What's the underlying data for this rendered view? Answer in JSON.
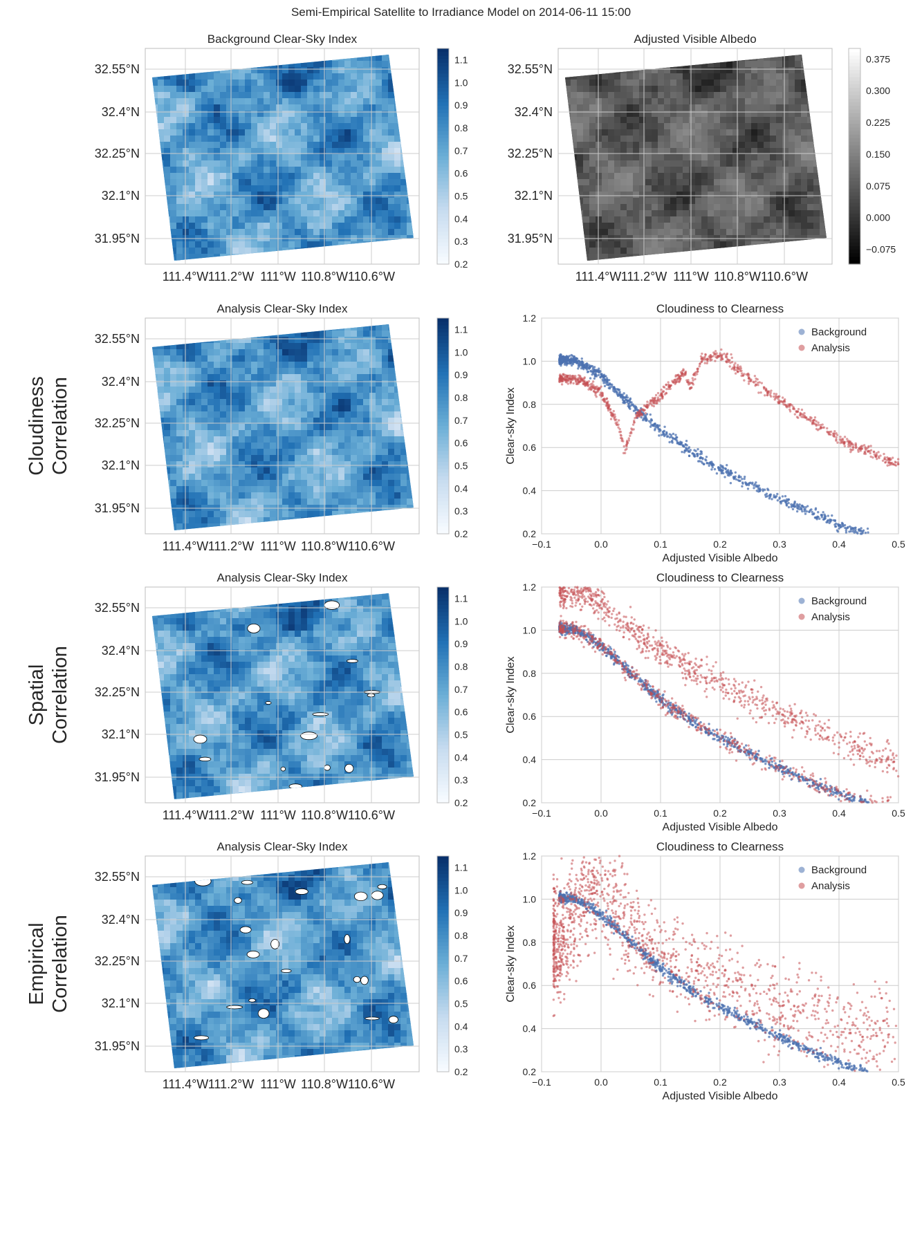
{
  "figure": {
    "suptitle": "Semi-Empirical Satellite to Irradiance Model on 2014-06-11 15:00",
    "row_labels": [
      {
        "line1": "",
        "line2": ""
      },
      {
        "line1": "Cloudiness",
        "line2": "Correlation"
      },
      {
        "line1": "Spatial",
        "line2": "Correlation"
      },
      {
        "line1": "Empirical",
        "line2": "Correlation"
      }
    ]
  },
  "colors": {
    "background_series": "#4c72b0",
    "analysis_series": "#c44e52",
    "grid": "#cccccc",
    "frame": "#bcbcbc"
  },
  "map_axes": {
    "xticks": [
      "111.4°W",
      "111.2°W",
      "111°W",
      "110.8°W",
      "110.6°W"
    ],
    "yticks": [
      "32.55°N",
      "32.4°N",
      "32.25°N",
      "32.1°N",
      "31.95°N"
    ]
  },
  "chart_data": [
    {
      "type": "heatmap",
      "title": "Background Clear-Sky Index",
      "colormap": "Blues",
      "colorbar_range": [
        0.2,
        1.15
      ],
      "colorbar_ticks": [
        "1.1",
        "1.0",
        "0.9",
        "0.8",
        "0.7",
        "0.6",
        "0.5",
        "0.4",
        "0.3",
        "0.2"
      ]
    },
    {
      "type": "heatmap",
      "title": "Adjusted Visible Albedo",
      "colormap": "Greys_r",
      "colorbar_range": [
        -0.11,
        0.4
      ],
      "colorbar_ticks": [
        "0.375",
        "0.300",
        "0.225",
        "0.150",
        "0.075",
        "0.000",
        "−0.075"
      ]
    },
    {
      "type": "heatmap",
      "title": "Analysis Clear-Sky Index",
      "colormap": "Blues",
      "colorbar_range": [
        0.2,
        1.15
      ],
      "colorbar_ticks": [
        "1.1",
        "1.0",
        "0.9",
        "0.8",
        "0.7",
        "0.6",
        "0.5",
        "0.4",
        "0.3",
        "0.2"
      ]
    },
    {
      "type": "scatter",
      "title": "Cloudiness to Clearness",
      "xlabel": "Adjusted Visible Albedo",
      "ylabel": "Clear-sky Index",
      "xlim": [
        -0.1,
        0.5
      ],
      "ylim": [
        0.2,
        1.2
      ],
      "xticks": [
        "−0.1",
        "0.0",
        "0.1",
        "0.2",
        "0.3",
        "0.4",
        "0.5"
      ],
      "yticks": [
        "1.2",
        "1.0",
        "0.8",
        "0.6",
        "0.4",
        "0.2"
      ],
      "legend": [
        "Background",
        "Analysis"
      ],
      "legend_position": "top-right",
      "series": [
        {
          "name": "Background",
          "x": [
            -0.07,
            -0.04,
            0.0,
            0.05,
            0.1,
            0.15,
            0.2,
            0.25,
            0.3,
            0.35,
            0.4,
            0.44
          ],
          "y": [
            1.01,
            1.0,
            0.93,
            0.8,
            0.68,
            0.58,
            0.5,
            0.43,
            0.36,
            0.3,
            0.24,
            0.2
          ]
        },
        {
          "name": "Analysis",
          "x": [
            -0.07,
            -0.03,
            0.0,
            0.03,
            0.04,
            0.06,
            0.1,
            0.14,
            0.15,
            0.17,
            0.2,
            0.25,
            0.3,
            0.4,
            0.5
          ],
          "y": [
            0.92,
            0.91,
            0.85,
            0.7,
            0.58,
            0.75,
            0.84,
            0.95,
            0.88,
            1.01,
            1.03,
            0.92,
            0.82,
            0.64,
            0.52
          ]
        }
      ]
    },
    {
      "type": "heatmap",
      "title": "Analysis Clear-Sky Index",
      "colormap": "Blues",
      "colorbar_range": [
        0.2,
        1.15
      ],
      "colorbar_ticks": [
        "1.1",
        "1.0",
        "0.9",
        "0.8",
        "0.7",
        "0.6",
        "0.5",
        "0.4",
        "0.3",
        "0.2"
      ]
    },
    {
      "type": "scatter",
      "title": "Cloudiness to Clearness",
      "xlabel": "Adjusted Visible Albedo",
      "ylabel": "Clear-sky Index",
      "xlim": [
        -0.1,
        0.5
      ],
      "ylim": [
        0.2,
        1.2
      ],
      "xticks": [
        "−0.1",
        "0.0",
        "0.1",
        "0.2",
        "0.3",
        "0.4",
        "0.5"
      ],
      "yticks": [
        "1.2",
        "1.0",
        "0.8",
        "0.6",
        "0.4",
        "0.2"
      ],
      "legend": [
        "Background",
        "Analysis"
      ],
      "legend_position": "top-right",
      "series": [
        {
          "name": "Background",
          "x": [
            -0.07,
            -0.04,
            0.0,
            0.05,
            0.1,
            0.15,
            0.2,
            0.25,
            0.3,
            0.35,
            0.4,
            0.44
          ],
          "y": [
            1.01,
            1.0,
            0.93,
            0.8,
            0.68,
            0.58,
            0.5,
            0.43,
            0.36,
            0.3,
            0.24,
            0.2
          ]
        },
        {
          "name": "Analysis",
          "x": [
            -0.07,
            -0.03,
            0.0,
            0.05,
            0.1,
            0.15,
            0.2,
            0.25,
            0.3,
            0.35,
            0.4,
            0.45,
            0.5
          ],
          "y": [
            1.17,
            1.18,
            1.12,
            1.0,
            0.9,
            0.82,
            0.75,
            0.68,
            0.61,
            0.55,
            0.49,
            0.43,
            0.38
          ]
        }
      ]
    },
    {
      "type": "heatmap",
      "title": "Analysis Clear-Sky Index",
      "colormap": "Blues",
      "colorbar_range": [
        0.2,
        1.15
      ],
      "colorbar_ticks": [
        "1.1",
        "1.0",
        "0.9",
        "0.8",
        "0.7",
        "0.6",
        "0.5",
        "0.4",
        "0.3",
        "0.2"
      ]
    },
    {
      "type": "scatter",
      "title": "Cloudiness to Clearness",
      "xlabel": "Adjusted Visible Albedo",
      "ylabel": "Clear-sky Index",
      "xlim": [
        -0.1,
        0.5
      ],
      "ylim": [
        0.2,
        1.2
      ],
      "xticks": [
        "−0.1",
        "0.0",
        "0.1",
        "0.2",
        "0.3",
        "0.4",
        "0.5"
      ],
      "yticks": [
        "1.2",
        "1.0",
        "0.8",
        "0.6",
        "0.4",
        "0.2"
      ],
      "legend": [
        "Background",
        "Analysis"
      ],
      "legend_position": "top-right",
      "series": [
        {
          "name": "Background",
          "x": [
            -0.07,
            -0.04,
            0.0,
            0.05,
            0.1,
            0.15,
            0.2,
            0.25,
            0.3,
            0.35,
            0.4,
            0.44
          ],
          "y": [
            1.01,
            1.0,
            0.93,
            0.8,
            0.68,
            0.58,
            0.5,
            0.43,
            0.36,
            0.3,
            0.24,
            0.2
          ]
        },
        {
          "name": "Analysis",
          "x": [
            -0.07,
            -0.03,
            0.0,
            0.03,
            0.05,
            0.1,
            0.15,
            0.2,
            0.25,
            0.3,
            0.4,
            0.5
          ],
          "y": [
            0.8,
            1.0,
            1.05,
            0.95,
            0.85,
            0.75,
            0.68,
            0.62,
            0.55,
            0.5,
            0.42,
            0.35
          ]
        }
      ]
    }
  ]
}
